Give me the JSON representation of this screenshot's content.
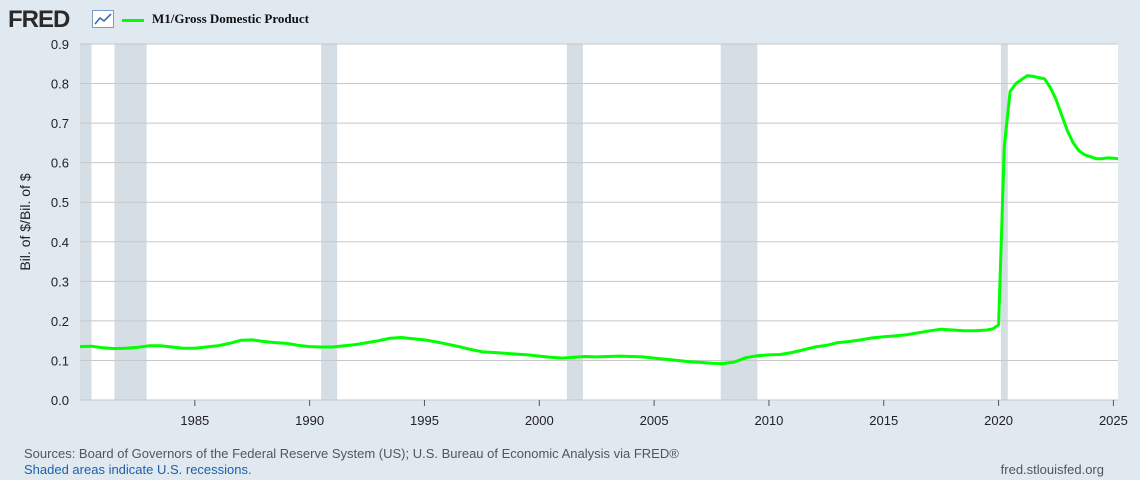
{
  "header": {
    "logo_text": "FRED",
    "legend_label": "M1/Gross Domestic Product"
  },
  "footer": {
    "sources": "Sources: Board of Governors of the Federal Reserve System (US); U.S. Bureau of Economic Analysis via FRED®",
    "recessions_note": "Shaded areas indicate U.S. recessions.",
    "site": "fred.stlouisfed.org"
  },
  "colors": {
    "series": "#00ff00",
    "recession": "#d5dde5",
    "background": "#e1e9f0",
    "plot_bg": "#ffffff",
    "grid": "#c8c8c8"
  },
  "chart_data": {
    "type": "line",
    "title": "",
    "ylabel": "Bil. of $/Bil. of $",
    "xlabel": "",
    "xlim": [
      1980.0,
      2025.2
    ],
    "ylim": [
      0.0,
      0.9
    ],
    "yticks": [
      "0.0",
      "0.1",
      "0.2",
      "0.3",
      "0.4",
      "0.5",
      "0.6",
      "0.7",
      "0.8",
      "0.9"
    ],
    "xticks": [
      "1985",
      "1990",
      "1995",
      "2000",
      "2005",
      "2010",
      "2015",
      "2020",
      "2025"
    ],
    "grid": true,
    "legend_position": "top-left",
    "recessions": [
      [
        1980.0,
        1980.5
      ],
      [
        1981.5,
        1982.9
      ],
      [
        1990.5,
        1991.2
      ],
      [
        2001.2,
        2001.9
      ],
      [
        2007.9,
        2009.5
      ],
      [
        2020.1,
        2020.4
      ]
    ],
    "series": [
      {
        "name": "M1/Gross Domestic Product",
        "x": [
          1980.0,
          1980.5,
          1981.0,
          1981.5,
          1982.0,
          1982.5,
          1983.0,
          1983.5,
          1984.0,
          1984.5,
          1985.0,
          1985.5,
          1986.0,
          1986.5,
          1987.0,
          1987.5,
          1988.0,
          1988.5,
          1989.0,
          1989.5,
          1990.0,
          1990.5,
          1991.0,
          1991.5,
          1992.0,
          1992.5,
          1993.0,
          1993.5,
          1994.0,
          1994.5,
          1995.0,
          1995.5,
          1996.0,
          1996.5,
          1997.0,
          1997.5,
          1998.0,
          1998.5,
          1999.0,
          1999.5,
          2000.0,
          2000.5,
          2001.0,
          2001.5,
          2002.0,
          2002.5,
          2003.0,
          2003.5,
          2004.0,
          2004.5,
          2005.0,
          2005.5,
          2006.0,
          2006.5,
          2007.0,
          2007.5,
          2008.0,
          2008.5,
          2009.0,
          2009.5,
          2010.0,
          2010.5,
          2011.0,
          2011.5,
          2012.0,
          2012.5,
          2013.0,
          2013.5,
          2014.0,
          2014.5,
          2015.0,
          2015.5,
          2016.0,
          2016.5,
          2017.0,
          2017.5,
          2018.0,
          2018.5,
          2019.0,
          2019.5,
          2019.75,
          2020.0,
          2020.25,
          2020.5,
          2020.75,
          2021.0,
          2021.25,
          2021.5,
          2021.75,
          2022.0,
          2022.25,
          2022.5,
          2022.75,
          2023.0,
          2023.25,
          2023.5,
          2023.75,
          2024.0,
          2024.25,
          2024.5,
          2024.75,
          2025.0,
          2025.2
        ],
        "y": [
          0.135,
          0.136,
          0.132,
          0.13,
          0.131,
          0.133,
          0.137,
          0.137,
          0.134,
          0.131,
          0.131,
          0.134,
          0.137,
          0.143,
          0.151,
          0.152,
          0.148,
          0.145,
          0.143,
          0.138,
          0.135,
          0.134,
          0.134,
          0.137,
          0.14,
          0.145,
          0.15,
          0.156,
          0.158,
          0.155,
          0.152,
          0.147,
          0.141,
          0.135,
          0.128,
          0.122,
          0.12,
          0.118,
          0.116,
          0.114,
          0.111,
          0.108,
          0.106,
          0.108,
          0.11,
          0.109,
          0.11,
          0.111,
          0.11,
          0.109,
          0.106,
          0.103,
          0.1,
          0.097,
          0.095,
          0.093,
          0.092,
          0.096,
          0.107,
          0.112,
          0.114,
          0.115,
          0.12,
          0.127,
          0.134,
          0.138,
          0.145,
          0.148,
          0.152,
          0.157,
          0.16,
          0.162,
          0.165,
          0.17,
          0.175,
          0.179,
          0.177,
          0.175,
          0.175,
          0.177,
          0.18,
          0.19,
          0.64,
          0.78,
          0.8,
          0.81,
          0.82,
          0.818,
          0.815,
          0.812,
          0.79,
          0.76,
          0.72,
          0.68,
          0.65,
          0.63,
          0.62,
          0.615,
          0.61,
          0.61,
          0.612,
          0.611,
          0.61
        ]
      }
    ]
  }
}
